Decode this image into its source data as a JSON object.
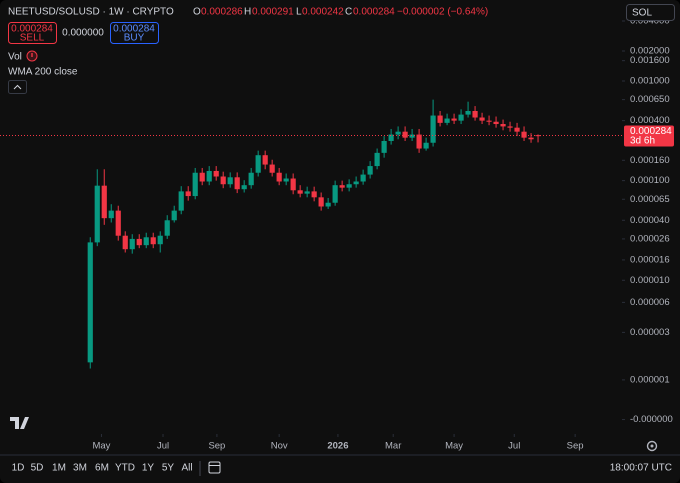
{
  "header": {
    "symbol": "NEETUSD/SOLUSD · 1W · CRYPTO",
    "o": "O",
    "h": "H",
    "l": "L",
    "c": "C",
    "change": "−0.000002 (−0.64%)",
    "sell": "SELL",
    "buy": "BUY",
    "spread": "0.000000",
    "currency": "SOL"
  },
  "indicators": [
    "Vol",
    "WMA 200 close"
  ],
  "chart_data": {
    "type": "candlestick",
    "open": [
      1.5e-06,
      2.4e-05,
      8.9e-05,
      4.2e-05,
      5e-05,
      2.8e-05,
      2.05e-05,
      2.6e-05,
      2.25e-05,
      2.7e-05,
      2.3e-05,
      2.8e-05,
      4e-05,
      5e-05,
      7.8e-05,
      7e-05,
      0.00012,
      9.8e-05,
      0.000125,
      0.00011,
      9.2e-05,
      0.000108,
      8.2e-05,
      9e-05,
      0.00012,
      0.00018,
      0.000145,
      0.00012,
      9.8e-05,
      0.000105,
      8e-05,
      7.4e-05,
      7.8e-05,
      6.8e-05,
      5.5e-05,
      6e-05,
      9e-05,
      8.5e-05,
      9.2e-05,
      9.8e-05,
      0.000115,
      0.00014,
      0.00019,
      0.00025,
      0.00029,
      0.00031,
      0.00027,
      0.00029,
      0.00021,
      0.00024,
      0.00045,
      0.00038,
      0.00042,
      0.0004,
      0.00046,
      0.0005,
      0.00043,
      0.0004,
      0.00039,
      0.00037,
      0.00035,
      0.00034,
      0.00031,
      0.00027,
      0.000286
    ],
    "high": [
      2.7e-05,
      0.00013,
      0.00013,
      5.8e-05,
      5.6e-05,
      3.1e-05,
      2.9e-05,
      2.9e-05,
      3e-05,
      3e-05,
      3.1e-05,
      4.5e-05,
      5.6e-05,
      8.8e-05,
      8.8e-05,
      0.000134,
      0.000134,
      0.00014,
      0.00014,
      0.000123,
      0.000121,
      0.000121,
      0.000101,
      0.000134,
      0.0002,
      0.0002,
      0.000162,
      0.000134,
      0.000118,
      0.000118,
      9e-05,
      8.7e-05,
      8.7e-05,
      7.6e-05,
      6.7e-05,
      0.0001,
      0.0001,
      0.000103,
      0.00011,
      0.000129,
      0.000157,
      0.00021,
      0.00028,
      0.00033,
      0.00035,
      0.00035,
      0.00033,
      0.00033,
      0.00027,
      0.00065,
      0.0005,
      0.00047,
      0.00047,
      0.00052,
      0.00062,
      0.00056,
      0.00048,
      0.00045,
      0.00044,
      0.00041,
      0.00039,
      0.00038,
      0.00035,
      0.0003,
      0.000291
    ],
    "low": [
      1.3e-06,
      2.2e-05,
      3.6e-05,
      3.8e-05,
      2.5e-05,
      1.9e-05,
      1.85e-05,
      2.1e-05,
      2.1e-05,
      2.1e-05,
      1.9e-05,
      2.6e-05,
      3.8e-05,
      4.6e-05,
      6.3e-05,
      6.5e-05,
      9e-05,
      9e-05,
      0.0001,
      8.4e-05,
      8.5e-05,
      7.5e-05,
      7.6e-05,
      8.3e-05,
      0.00011,
      0.00013,
      0.00011,
      9e-05,
      9e-05,
      7.3e-05,
      6.8e-05,
      6.8e-05,
      6.2e-05,
      5e-05,
      5.2e-05,
      5.6e-05,
      7.8e-05,
      7.8e-05,
      8.5e-05,
      9.1e-05,
      0.000105,
      0.00013,
      0.00017,
      0.00023,
      0.00026,
      0.00025,
      0.00025,
      0.00019,
      0.0002,
      0.00022,
      0.00035,
      0.00036,
      0.00037,
      0.00037,
      0.00043,
      0.0004,
      0.00037,
      0.00036,
      0.00034,
      0.00032,
      0.00031,
      0.00028,
      0.00025,
      0.00024,
      0.000242
    ],
    "close": [
      2.4e-05,
      8.9e-05,
      4.2e-05,
      5e-05,
      2.8e-05,
      2.05e-05,
      2.6e-05,
      2.25e-05,
      2.7e-05,
      2.3e-05,
      2.8e-05,
      4e-05,
      5e-05,
      7.8e-05,
      7e-05,
      0.00012,
      9.8e-05,
      0.000125,
      0.00011,
      9.2e-05,
      0.000108,
      8.2e-05,
      9e-05,
      0.00012,
      0.00018,
      0.000145,
      0.00012,
      9.8e-05,
      0.000105,
      8e-05,
      7.4e-05,
      7.8e-05,
      6.8e-05,
      5.5e-05,
      6e-05,
      9e-05,
      8.5e-05,
      9.2e-05,
      9.8e-05,
      0.000115,
      0.00014,
      0.00019,
      0.00025,
      0.00029,
      0.00031,
      0.00027,
      0.00029,
      0.00021,
      0.00024,
      0.00045,
      0.00038,
      0.00042,
      0.0004,
      0.00046,
      0.0005,
      0.00043,
      0.0004,
      0.00039,
      0.00037,
      0.00035,
      0.00034,
      0.00031,
      0.00027,
      0.00026,
      0.000284
    ],
    "colors": {
      "up": "#089981",
      "down": "#f23645"
    },
    "log_scale": true,
    "xlim": [
      -12.9,
      76
    ],
    "xticks": [
      {
        "value": 1.6,
        "label": "May"
      },
      {
        "value": 10.4,
        "label": "Jul"
      },
      {
        "value": 18.1,
        "label": "Sep"
      },
      {
        "value": 27,
        "label": "Nov"
      },
      {
        "value": 35.4,
        "label": "2026"
      },
      {
        "value": 43.3,
        "label": "Mar"
      },
      {
        "value": 52,
        "label": "May"
      },
      {
        "value": 60.6,
        "label": "Jul"
      },
      {
        "value": 69.3,
        "label": "Sep"
      }
    ],
    "ylim": [
      3e-07,
      0.0065
    ],
    "yticks": [
      {
        "value": 0.004,
        "label": "0.004000"
      },
      {
        "value": 0.002,
        "label": "0.002000"
      },
      {
        "value": 0.0016,
        "label": "0.001600"
      },
      {
        "value": 0.001,
        "label": "0.001000"
      },
      {
        "value": 0.00065,
        "label": "0.000650"
      },
      {
        "value": 0.0004,
        "label": "0.000400"
      },
      {
        "value": 0.00016,
        "label": "0.000160"
      },
      {
        "value": 0.0001,
        "label": "0.000100"
      },
      {
        "value": 6.5e-05,
        "label": "0.000065"
      },
      {
        "value": 4e-05,
        "label": "0.000040"
      },
      {
        "value": 2.6e-05,
        "label": "0.000026"
      },
      {
        "value": 1.6e-05,
        "label": "0.000016"
      },
      {
        "value": 1e-05,
        "label": "0.000010"
      },
      {
        "value": 6e-06,
        "label": "0.000006"
      },
      {
        "value": 3e-06,
        "label": "0.000003"
      },
      {
        "value": 1e-06,
        "label": "0.000001"
      },
      {
        "value": 4e-07,
        "label": "-0.000000"
      }
    ],
    "countdown": "3d 6h"
  },
  "toolbar": {
    "ranges": [
      "1D",
      "5D",
      "1M",
      "3M",
      "6M",
      "YTD",
      "1Y",
      "5Y",
      "All"
    ],
    "clock": "18:00:07 UTC"
  }
}
